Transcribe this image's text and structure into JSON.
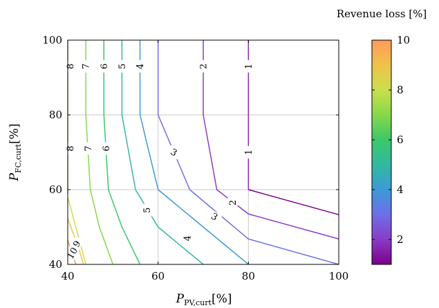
{
  "chart_data": {
    "type": "contour",
    "title": "",
    "xlabel": "P",
    "xlabel_sub": "PV,curt",
    "xlabel_unit": "[%]",
    "ylabel": "P",
    "ylabel_sub": "FC,curt",
    "ylabel_unit": "[%]",
    "xlim": [
      40,
      100
    ],
    "ylim": [
      40,
      100
    ],
    "xticks": [
      "40",
      "60",
      "80",
      "100"
    ],
    "yticks": [
      "40",
      "60",
      "80",
      "100"
    ],
    "grid": true,
    "colorbar": {
      "label": "Revenue loss [%]",
      "min": 1,
      "max": 10,
      "ticks": [
        "2",
        "4",
        "6",
        "8",
        "10"
      ],
      "tick_values": [
        2,
        4,
        6,
        8,
        10
      ],
      "stops": [
        {
          "v": 1,
          "color": "#7a008a"
        },
        {
          "v": 2,
          "color": "#8a3cc6"
        },
        {
          "v": 3,
          "color": "#6e6ee8"
        },
        {
          "v": 4,
          "color": "#3b9ad6"
        },
        {
          "v": 5,
          "color": "#33b8a0"
        },
        {
          "v": 6,
          "color": "#3dc76a"
        },
        {
          "v": 7,
          "color": "#86d84a"
        },
        {
          "v": 8,
          "color": "#c9df4e"
        },
        {
          "v": 9,
          "color": "#f0c24a"
        },
        {
          "v": 10,
          "color": "#ff9a5c"
        }
      ]
    },
    "contours": [
      {
        "level": 1,
        "label": "1",
        "color": "#8a2bb0",
        "points": [
          [
            80,
            100
          ],
          [
            80,
            60
          ]
        ],
        "label_positions": [
          [
            80,
            93
          ],
          [
            80,
            70
          ]
        ],
        "label_rotation": -90
      },
      {
        "level": 1,
        "label": "",
        "color": "#7a008a",
        "points": [
          [
            80,
            60
          ],
          [
            100,
            53.3
          ]
        ]
      },
      {
        "level": 2,
        "label": "2",
        "color": "#8a3cc6",
        "points": [
          [
            70,
            100
          ],
          [
            70,
            80
          ],
          [
            73,
            60
          ],
          [
            80,
            53.5
          ],
          [
            100,
            46.8
          ]
        ],
        "label_positions": [
          [
            70,
            93
          ],
          [
            76.5,
            56.5
          ]
        ],
        "label_rotation": -90
      },
      {
        "level": 3,
        "label": "3",
        "color": "#6e6ee8",
        "points": [
          [
            60,
            100
          ],
          [
            60,
            80
          ],
          [
            67,
            60
          ],
          [
            80,
            46.8
          ],
          [
            100,
            40
          ]
        ],
        "label_positions": [
          [
            63.5,
            70
          ],
          [
            72.5,
            52.8
          ]
        ],
        "label_rotation": 30
      },
      {
        "level": 4,
        "label": "4",
        "color": "#3b9ad6",
        "points": [
          [
            56,
            100
          ],
          [
            56,
            80
          ],
          [
            60,
            60
          ],
          [
            70,
            50
          ],
          [
            80,
            40
          ]
        ],
        "label_positions": [
          [
            56,
            93
          ],
          [
            66.5,
            47
          ]
        ],
        "label_rotation": -90
      },
      {
        "level": 5,
        "label": "5",
        "color": "#33b8a0",
        "points": [
          [
            52,
            100
          ],
          [
            52,
            80
          ],
          [
            55,
            60
          ],
          [
            60,
            50
          ],
          [
            70,
            40
          ]
        ],
        "label_positions": [
          [
            52,
            93
          ],
          [
            57.5,
            54.5
          ]
        ],
        "label_rotation": -90
      },
      {
        "level": 6,
        "label": "6",
        "color": "#3dc76a",
        "points": [
          [
            48,
            100
          ],
          [
            48,
            80
          ],
          [
            49,
            60
          ],
          [
            52,
            50
          ],
          [
            56,
            40
          ]
        ],
        "label_positions": [
          [
            48,
            93
          ],
          [
            48.5,
            71
          ]
        ],
        "label_rotation": -90
      },
      {
        "level": 7,
        "label": "7",
        "color": "#86d84a",
        "points": [
          [
            44,
            100
          ],
          [
            44,
            80
          ],
          [
            45,
            60
          ],
          [
            47,
            50
          ],
          [
            50,
            40
          ]
        ],
        "label_positions": [
          [
            44,
            93
          ],
          [
            44.5,
            71
          ]
        ],
        "label_rotation": -90
      },
      {
        "level": 8,
        "label": "8",
        "color": "#a8d948",
        "points": [
          [
            40,
            100
          ],
          [
            40,
            60
          ],
          [
            40,
            59
          ]
        ],
        "label_positions": [
          [
            40.5,
            93
          ],
          [
            40.5,
            71
          ]
        ],
        "label_rotation": -90
      },
      {
        "level": 8,
        "label": "",
        "color": "#c9df4e",
        "points": [
          [
            40,
            58
          ],
          [
            44,
            40
          ]
        ]
      },
      {
        "level": 9,
        "label": "9",
        "color": "#f0c24a",
        "points": [
          [
            40,
            52.3
          ],
          [
            42.5,
            44
          ],
          [
            43.5,
            40
          ]
        ],
        "label_positions": [
          [
            42,
            45.5
          ]
        ],
        "label_rotation": -60
      },
      {
        "level": 10,
        "label": "10",
        "color": "#ff9a5c",
        "points": [
          [
            40,
            46.5
          ],
          [
            41.8,
            40
          ]
        ],
        "label_positions": [
          [
            41,
            43
          ]
        ],
        "label_rotation": -60
      }
    ]
  }
}
